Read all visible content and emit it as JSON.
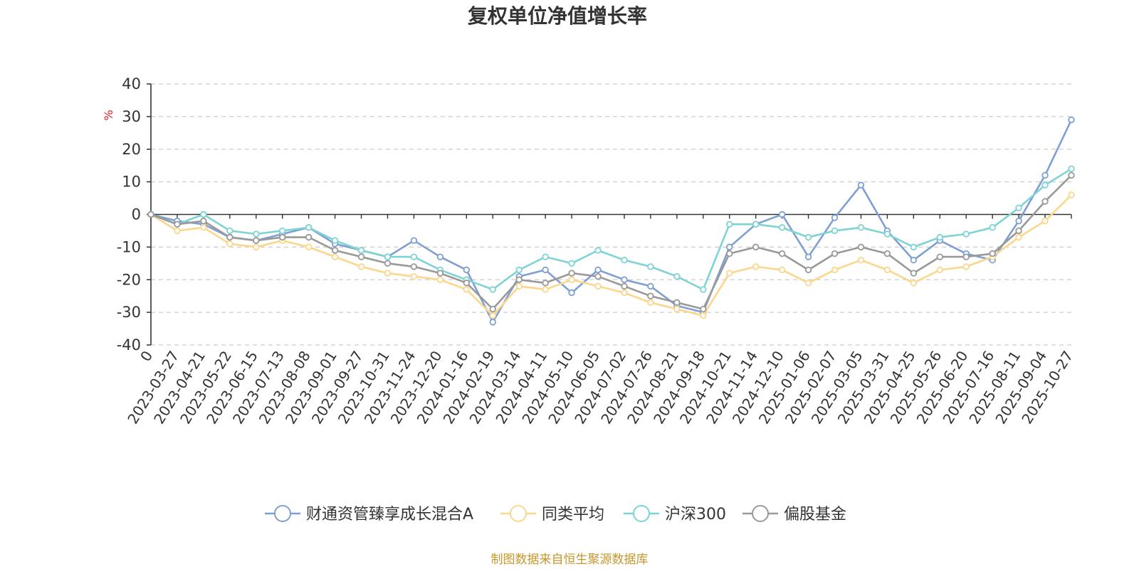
{
  "chart_data": {
    "type": "line",
    "title": "复权单位净值增长率",
    "ylabel": "%",
    "ylim": [
      -40,
      40
    ],
    "yticks": [
      "40",
      "30",
      "20",
      "10",
      "0",
      "-10",
      "-20",
      "-30",
      "-40"
    ],
    "grid": true,
    "legend_position": "bottom",
    "x": [
      "0",
      "2023-03-27",
      "2023-04-21",
      "2023-05-22",
      "2023-06-15",
      "2023-07-13",
      "2023-08-08",
      "2023-09-01",
      "2023-09-27",
      "2023-10-31",
      "2023-11-24",
      "2023-12-20",
      "2024-01-16",
      "2024-02-19",
      "2024-03-14",
      "2024-04-11",
      "2024-05-10",
      "2024-06-05",
      "2024-07-02",
      "2024-07-26",
      "2024-08-21",
      "2024-09-18",
      "2024-10-21",
      "2024-11-14",
      "2024-12-10",
      "2025-01-06",
      "2025-02-07",
      "2025-03-05",
      "2025-03-31",
      "2025-04-25",
      "2025-05-26",
      "2025-06-20",
      "2025-07-16",
      "2025-08-11",
      "2025-09-04",
      "2025-10-27"
    ],
    "series": [
      {
        "name": "财通资管臻享成长混合A",
        "color": "#7f9fd4",
        "values": [
          0,
          -2,
          -3,
          -7,
          -8,
          -6,
          -4,
          -9,
          -11,
          -13,
          -8,
          -13,
          -17,
          -33,
          -19,
          -17,
          -24,
          -17,
          -20,
          -22,
          -28,
          -30,
          -10,
          -3,
          0,
          -13,
          -1,
          9,
          -5,
          -14,
          -8,
          -12,
          -14,
          -2,
          12,
          29
        ]
      },
      {
        "name": "同类平均",
        "color": "#fcd68c",
        "values": [
          0,
          -5,
          -4,
          -9,
          -10,
          -8,
          -10,
          -13,
          -16,
          -18,
          -19,
          -20,
          -23,
          -31,
          -22,
          -23,
          -20,
          -22,
          -24,
          -27,
          -29,
          -31,
          -18,
          -16,
          -17,
          -21,
          -17,
          -14,
          -17,
          -21,
          -17,
          -16,
          -13,
          -7,
          -2,
          6
        ]
      },
      {
        "name": "沪深300",
        "color": "#7ed3d3",
        "values": [
          0,
          -3,
          0,
          -5,
          -6,
          -5,
          -4,
          -8,
          -11,
          -13,
          -13,
          -17,
          -20,
          -23,
          -17,
          -13,
          -15,
          -11,
          -14,
          -16,
          -19,
          -23,
          -3,
          -3,
          -4,
          -7,
          -5,
          -4,
          -6,
          -10,
          -7,
          -6,
          -4,
          2,
          9,
          14
        ]
      },
      {
        "name": "偏股基金",
        "color": "#999999",
        "values": [
          0,
          -3,
          -2,
          -7,
          -8,
          -7,
          -7,
          -11,
          -13,
          -15,
          -16,
          -18,
          -21,
          -29,
          -20,
          -21,
          -18,
          -19,
          -22,
          -25,
          -27,
          -29,
          -12,
          -10,
          -12,
          -17,
          -12,
          -10,
          -12,
          -18,
          -13,
          -13,
          -12,
          -5,
          4,
          12
        ]
      }
    ]
  },
  "source_note": "制图数据来自恒生聚源数据库"
}
